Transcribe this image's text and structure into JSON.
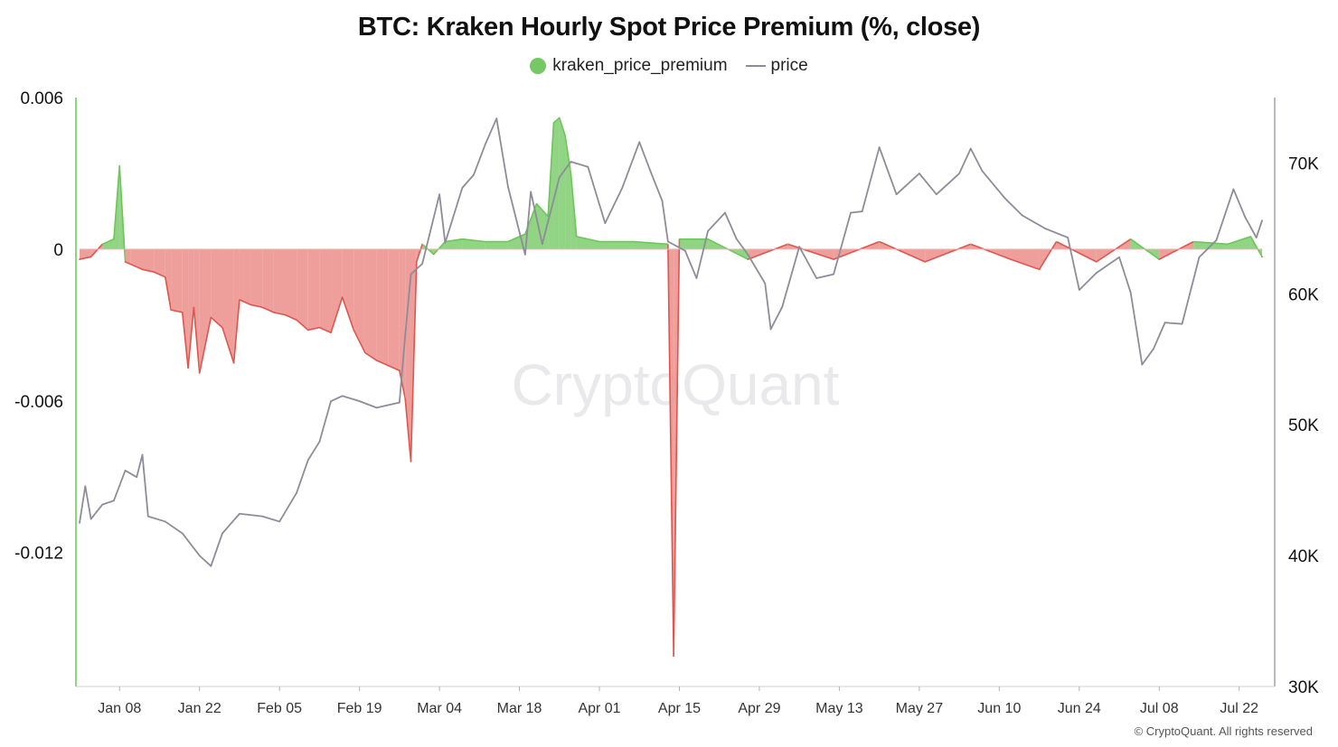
{
  "chart_data": {
    "type": "area",
    "title": "BTC: Kraken Hourly Spot Price Premium (%, close)",
    "legend": [
      {
        "name": "kraken_price_premium",
        "color": "#76c864",
        "marker": "dot"
      },
      {
        "name": "price",
        "color": "#8e8c99",
        "marker": "line"
      }
    ],
    "legend_placement": "top-center",
    "watermark": "CryptoQuant",
    "copyright": "© CryptoQuant. All rights reserved",
    "colors": {
      "positive": "#6cc65a",
      "negative": "#e0554e",
      "negative_fill": "#ec9591",
      "price": "#8e8c99"
    },
    "grid": false,
    "x_range": [
      "2024-01-01",
      "2024-07-26"
    ],
    "x_ticks": [
      "Jan 08",
      "Jan 22",
      "Feb 05",
      "Feb 19",
      "Mar 04",
      "Mar 18",
      "Apr 01",
      "Apr 15",
      "Apr 29",
      "May 13",
      "May 27",
      "Jun 10",
      "Jun 24",
      "Jul 08",
      "Jul 22"
    ],
    "x_tick_dates": [
      "2024-01-08",
      "2024-01-22",
      "2024-02-05",
      "2024-02-19",
      "2024-03-04",
      "2024-03-18",
      "2024-04-01",
      "2024-04-15",
      "2024-04-29",
      "2024-05-13",
      "2024-05-27",
      "2024-06-10",
      "2024-06-24",
      "2024-07-08",
      "2024-07-22"
    ],
    "y_left": {
      "ticks": [
        "0.006",
        "0",
        "-0.006",
        "-0.012"
      ],
      "tick_values": [
        0.006,
        0,
        -0.006,
        -0.012
      ],
      "range": [
        -0.0173,
        0.006
      ]
    },
    "y_right": {
      "ticks": [
        "70K",
        "60K",
        "50K",
        "40K",
        "30K"
      ],
      "tick_values": [
        70000,
        60000,
        50000,
        40000,
        30000
      ],
      "range": [
        30000,
        75000
      ]
    },
    "premium_series": {
      "name": "kraken_price_premium",
      "axis": "left",
      "points": [
        [
          "2024-01-01",
          -0.0004
        ],
        [
          "2024-01-03",
          -0.0003
        ],
        [
          "2024-01-05",
          0.0002
        ],
        [
          "2024-01-07",
          0.0004
        ],
        [
          "2024-01-08",
          0.0033
        ],
        [
          "2024-01-09",
          -0.0005
        ],
        [
          "2024-01-10",
          -0.0006
        ],
        [
          "2024-01-12",
          -0.0008
        ],
        [
          "2024-01-14",
          -0.0009
        ],
        [
          "2024-01-16",
          -0.0011
        ],
        [
          "2024-01-17",
          -0.0024
        ],
        [
          "2024-01-19",
          -0.0025
        ],
        [
          "2024-01-20",
          -0.0047
        ],
        [
          "2024-01-21",
          -0.0023
        ],
        [
          "2024-01-22",
          -0.0049
        ],
        [
          "2024-01-24",
          -0.0027
        ],
        [
          "2024-01-26",
          -0.0031
        ],
        [
          "2024-01-28",
          -0.0045
        ],
        [
          "2024-01-29",
          -0.002
        ],
        [
          "2024-01-31",
          -0.0022
        ],
        [
          "2024-02-02",
          -0.0023
        ],
        [
          "2024-02-04",
          -0.0025
        ],
        [
          "2024-02-06",
          -0.0026
        ],
        [
          "2024-02-08",
          -0.0028
        ],
        [
          "2024-02-10",
          -0.0032
        ],
        [
          "2024-02-12",
          -0.0031
        ],
        [
          "2024-02-14",
          -0.0033
        ],
        [
          "2024-02-16",
          -0.0019
        ],
        [
          "2024-02-18",
          -0.0032
        ],
        [
          "2024-02-20",
          -0.0041
        ],
        [
          "2024-02-22",
          -0.0044
        ],
        [
          "2024-02-24",
          -0.0046
        ],
        [
          "2024-02-26",
          -0.0048
        ],
        [
          "2024-02-27",
          -0.0059
        ],
        [
          "2024-02-28",
          -0.0084
        ],
        [
          "2024-02-29",
          -0.0005
        ],
        [
          "2024-03-01",
          0.0002
        ],
        [
          "2024-03-03",
          -0.0002
        ],
        [
          "2024-03-05",
          0.0003
        ],
        [
          "2024-03-08",
          0.0004
        ],
        [
          "2024-03-12",
          0.0003
        ],
        [
          "2024-03-16",
          0.0003
        ],
        [
          "2024-03-19",
          0.0006
        ],
        [
          "2024-03-21",
          0.0018
        ],
        [
          "2024-03-23",
          0.0013
        ],
        [
          "2024-03-24",
          0.005
        ],
        [
          "2024-03-25",
          0.0052
        ],
        [
          "2024-03-26",
          0.0045
        ],
        [
          "2024-03-27",
          0.003
        ],
        [
          "2024-03-28",
          0.0005
        ],
        [
          "2024-04-01",
          0.0003
        ],
        [
          "2024-04-07",
          0.0003
        ],
        [
          "2024-04-13",
          0.0002
        ],
        [
          "2024-04-14",
          -0.0161
        ],
        [
          "2024-04-15",
          0.0004
        ],
        [
          "2024-04-20",
          0.0004
        ],
        [
          "2024-04-27",
          -0.0004
        ],
        [
          "2024-05-04",
          0.0002
        ],
        [
          "2024-05-12",
          -0.0004
        ],
        [
          "2024-05-20",
          0.0003
        ],
        [
          "2024-05-28",
          -0.0005
        ],
        [
          "2024-06-05",
          0.0002
        ],
        [
          "2024-06-12",
          -0.0004
        ],
        [
          "2024-06-17",
          -0.0008
        ],
        [
          "2024-06-20",
          0.0003
        ],
        [
          "2024-06-27",
          -0.0005
        ],
        [
          "2024-07-03",
          0.0004
        ],
        [
          "2024-07-08",
          -0.0004
        ],
        [
          "2024-07-14",
          0.0003
        ],
        [
          "2024-07-20",
          0.0002
        ],
        [
          "2024-07-24",
          0.0005
        ],
        [
          "2024-07-26",
          -0.0003
        ]
      ]
    },
    "price_series": {
      "name": "price",
      "axis": "right",
      "points": [
        [
          "2024-01-01",
          42500
        ],
        [
          "2024-01-02",
          45300
        ],
        [
          "2024-01-03",
          42800
        ],
        [
          "2024-01-05",
          43900
        ],
        [
          "2024-01-07",
          44200
        ],
        [
          "2024-01-09",
          46500
        ],
        [
          "2024-01-11",
          46000
        ],
        [
          "2024-01-12",
          47700
        ],
        [
          "2024-01-13",
          43000
        ],
        [
          "2024-01-16",
          42600
        ],
        [
          "2024-01-19",
          41700
        ],
        [
          "2024-01-22",
          40000
        ],
        [
          "2024-01-24",
          39200
        ],
        [
          "2024-01-26",
          41700
        ],
        [
          "2024-01-29",
          43200
        ],
        [
          "2024-02-02",
          43000
        ],
        [
          "2024-02-05",
          42600
        ],
        [
          "2024-02-08",
          44800
        ],
        [
          "2024-02-10",
          47300
        ],
        [
          "2024-02-12",
          48700
        ],
        [
          "2024-02-14",
          51800
        ],
        [
          "2024-02-16",
          52200
        ],
        [
          "2024-02-19",
          51800
        ],
        [
          "2024-02-22",
          51300
        ],
        [
          "2024-02-26",
          51700
        ],
        [
          "2024-02-27",
          56800
        ],
        [
          "2024-02-28",
          61500
        ],
        [
          "2024-03-01",
          62300
        ],
        [
          "2024-03-04",
          67600
        ],
        [
          "2024-03-05",
          63900
        ],
        [
          "2024-03-08",
          68100
        ],
        [
          "2024-03-10",
          69100
        ],
        [
          "2024-03-12",
          71400
        ],
        [
          "2024-03-14",
          73400
        ],
        [
          "2024-03-16",
          68200
        ],
        [
          "2024-03-19",
          63000
        ],
        [
          "2024-03-20",
          67800
        ],
        [
          "2024-03-22",
          63800
        ],
        [
          "2024-03-25",
          68900
        ],
        [
          "2024-03-27",
          70100
        ],
        [
          "2024-03-30",
          69700
        ],
        [
          "2024-04-02",
          65400
        ],
        [
          "2024-04-05",
          68100
        ],
        [
          "2024-04-08",
          71600
        ],
        [
          "2024-04-10",
          69300
        ],
        [
          "2024-04-12",
          67100
        ],
        [
          "2024-04-13",
          64000
        ],
        [
          "2024-04-16",
          63300
        ],
        [
          "2024-04-18",
          61200
        ],
        [
          "2024-04-20",
          64800
        ],
        [
          "2024-04-23",
          66200
        ],
        [
          "2024-04-25",
          64200
        ],
        [
          "2024-04-27",
          63000
        ],
        [
          "2024-04-30",
          60800
        ],
        [
          "2024-05-01",
          57300
        ],
        [
          "2024-05-03",
          59000
        ],
        [
          "2024-05-06",
          63600
        ],
        [
          "2024-05-09",
          61200
        ],
        [
          "2024-05-12",
          61500
        ],
        [
          "2024-05-15",
          66200
        ],
        [
          "2024-05-17",
          66300
        ],
        [
          "2024-05-20",
          71200
        ],
        [
          "2024-05-23",
          67600
        ],
        [
          "2024-05-27",
          69200
        ],
        [
          "2024-05-30",
          67600
        ],
        [
          "2024-06-03",
          69200
        ],
        [
          "2024-06-05",
          71100
        ],
        [
          "2024-06-07",
          69400
        ],
        [
          "2024-06-11",
          67300
        ],
        [
          "2024-06-14",
          66000
        ],
        [
          "2024-06-18",
          65000
        ],
        [
          "2024-06-22",
          64300
        ],
        [
          "2024-06-24",
          60300
        ],
        [
          "2024-06-27",
          61600
        ],
        [
          "2024-07-01",
          62800
        ],
        [
          "2024-07-03",
          60100
        ],
        [
          "2024-07-05",
          54600
        ],
        [
          "2024-07-07",
          55800
        ],
        [
          "2024-07-09",
          57800
        ],
        [
          "2024-07-12",
          57700
        ],
        [
          "2024-07-15",
          62800
        ],
        [
          "2024-07-18",
          64100
        ],
        [
          "2024-07-21",
          68000
        ],
        [
          "2024-07-23",
          65900
        ],
        [
          "2024-07-25",
          64300
        ],
        [
          "2024-07-26",
          65600
        ]
      ]
    }
  }
}
